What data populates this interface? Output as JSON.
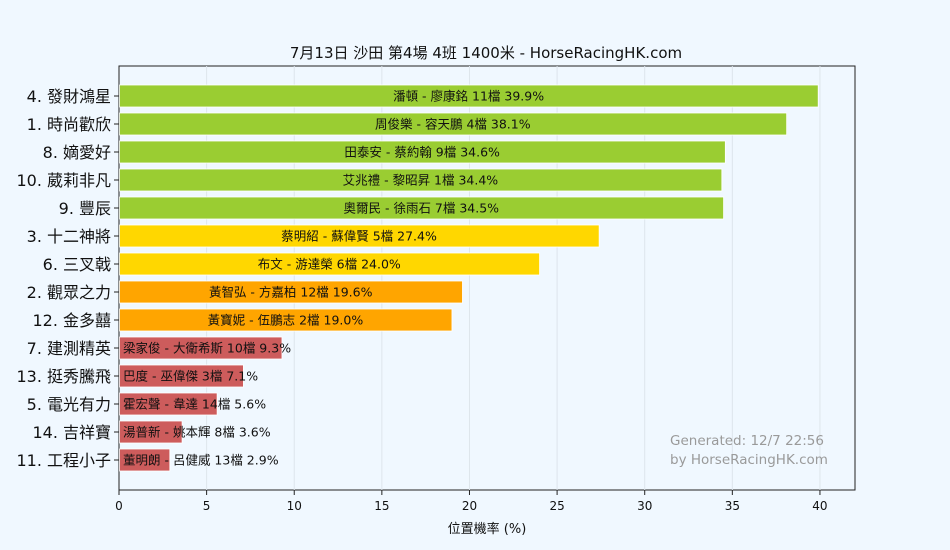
{
  "chart_data": {
    "type": "bar",
    "orientation": "horizontal",
    "title": "7月13日  沙田  第4場  4班  1400米 - HorseRacingHK.com",
    "xlabel": "位置機率 (%)",
    "ylabel": "",
    "xlim": [
      0,
      42
    ],
    "x_ticks": [
      "0",
      "5",
      "10",
      "15",
      "20",
      "25",
      "30",
      "35",
      "40"
    ],
    "grid": "vertical",
    "categories": [
      "4. 發財鴻星",
      "1. 時尚歡欣",
      "8. 嫡愛好",
      "10. 葳莉非凡",
      "9. 豐辰",
      "3. 十二神將",
      "6. 三叉戟",
      "2. 觀眾之力",
      "12. 金多囍",
      "7. 建測精英",
      "13. 挺秀騰飛",
      "5. 電光有力",
      "14. 吉祥寶",
      "11. 工程小子"
    ],
    "values": [
      39.9,
      38.1,
      34.6,
      34.4,
      34.5,
      27.4,
      24.0,
      19.6,
      19.0,
      9.3,
      7.1,
      5.6,
      3.6,
      2.9
    ],
    "bar_labels": [
      "潘頓 - 廖康銘 11檔  39.9%",
      "周俊樂 - 容天鵬 4檔  38.1%",
      "田泰安 - 蔡約翰 9檔  34.6%",
      "艾兆禮 - 黎昭昇 1檔  34.4%",
      "奧爾民 - 徐雨石 7檔  34.5%",
      "蔡明紹 - 蘇偉賢 5檔  27.4%",
      "布文 - 游達榮 6檔  24.0%",
      "黃智弘 - 方嘉柏 12檔  19.6%",
      "黃寶妮 - 伍鵬志 2檔  19.0%",
      "梁家俊 - 大衛希斯 10檔  9.3%",
      "巴度 - 巫偉傑 3檔  7.1%",
      "霍宏聲 - 韋達 14檔  5.6%",
      "湯普新 - 姚本輝 8檔  3.6%",
      "董明朗 - 呂健威 13檔  2.9%"
    ],
    "bar_colors": [
      "#9acd32",
      "#9acd32",
      "#9acd32",
      "#9acd32",
      "#9acd32",
      "#ffd700",
      "#ffd700",
      "#ffa500",
      "#ffa500",
      "#cd5c5c",
      "#cd5c5c",
      "#cd5c5c",
      "#cd5c5c",
      "#cd5c5c"
    ],
    "annotations": [
      "Generated: 12/7 22:56",
      "by HorseRacingHK.com"
    ]
  }
}
